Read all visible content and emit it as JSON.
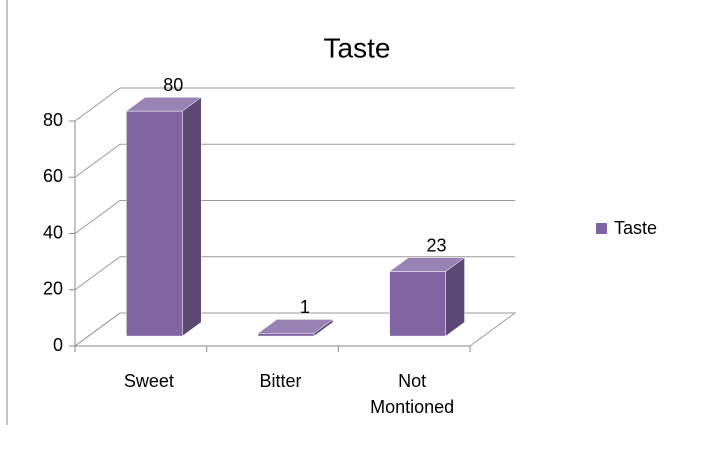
{
  "chart_data": {
    "type": "bar3d",
    "title": "Taste",
    "categories": [
      "Sweet",
      "Bitter",
      "Not Montioned"
    ],
    "series": [
      {
        "name": "Taste",
        "color": "#8064a2",
        "values": [
          80,
          1,
          23
        ]
      }
    ],
    "ylim": [
      0,
      80
    ],
    "yticks": [
      0,
      20,
      40,
      60,
      80
    ],
    "grid": true,
    "legend": "right"
  }
}
